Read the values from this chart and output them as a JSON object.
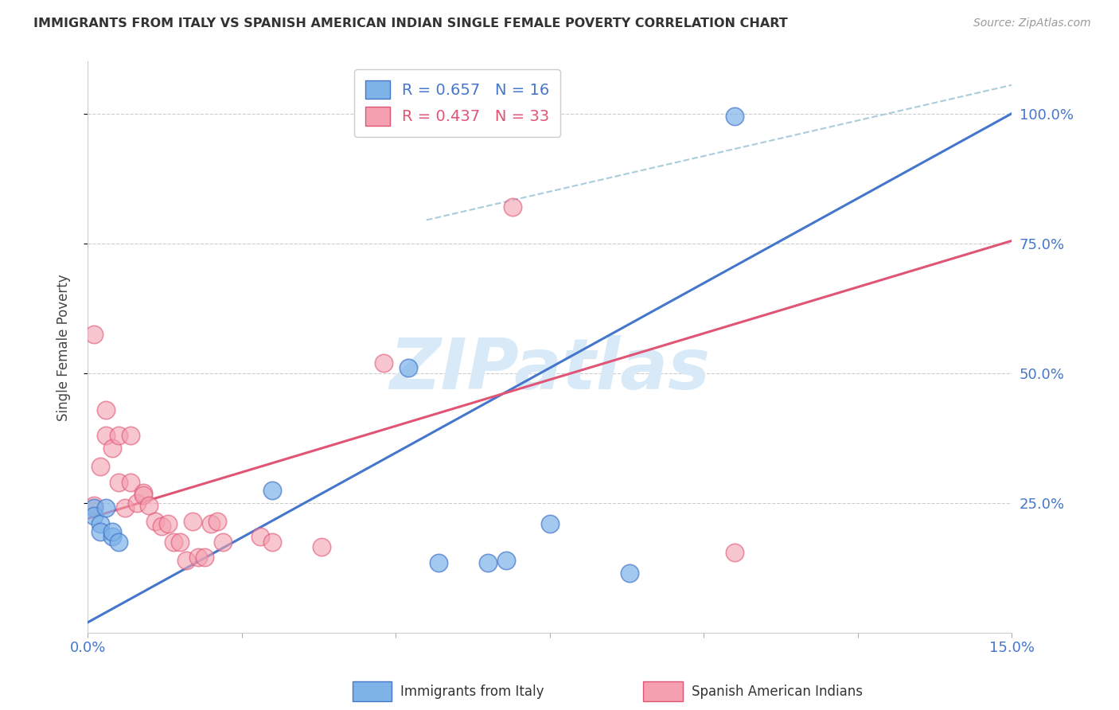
{
  "title": "IMMIGRANTS FROM ITALY VS SPANISH AMERICAN INDIAN SINGLE FEMALE POVERTY CORRELATION CHART",
  "source": "Source: ZipAtlas.com",
  "ylabel": "Single Female Poverty",
  "ytick_labels": [
    "25.0%",
    "50.0%",
    "75.0%",
    "100.0%"
  ],
  "legend_blue_r": "R = 0.657",
  "legend_blue_n": "N = 16",
  "legend_pink_r": "R = 0.437",
  "legend_pink_n": "N = 33",
  "legend_blue_label": "Immigrants from Italy",
  "legend_pink_label": "Spanish American Indians",
  "blue_scatter_x": [
    0.001,
    0.001,
    0.002,
    0.002,
    0.003,
    0.004,
    0.004,
    0.005,
    0.03,
    0.052,
    0.057,
    0.065,
    0.068,
    0.075,
    0.088,
    0.105
  ],
  "blue_scatter_y": [
    0.24,
    0.225,
    0.21,
    0.195,
    0.24,
    0.185,
    0.195,
    0.175,
    0.275,
    0.51,
    0.135,
    0.135,
    0.14,
    0.21,
    0.115,
    0.995
  ],
  "pink_scatter_x": [
    0.001,
    0.001,
    0.002,
    0.003,
    0.003,
    0.004,
    0.005,
    0.005,
    0.006,
    0.007,
    0.007,
    0.008,
    0.009,
    0.009,
    0.01,
    0.011,
    0.012,
    0.013,
    0.014,
    0.015,
    0.016,
    0.017,
    0.018,
    0.019,
    0.02,
    0.021,
    0.022,
    0.028,
    0.03,
    0.038,
    0.048,
    0.069,
    0.105
  ],
  "pink_scatter_y": [
    0.245,
    0.575,
    0.32,
    0.43,
    0.38,
    0.355,
    0.29,
    0.38,
    0.24,
    0.29,
    0.38,
    0.25,
    0.27,
    0.265,
    0.245,
    0.215,
    0.205,
    0.21,
    0.175,
    0.175,
    0.14,
    0.215,
    0.145,
    0.145,
    0.21,
    0.215,
    0.175,
    0.185,
    0.175,
    0.165,
    0.52,
    0.82,
    0.155
  ],
  "blue_line_x": [
    0.0,
    0.15
  ],
  "blue_line_y": [
    0.02,
    1.0
  ],
  "pink_line_x": [
    0.0,
    0.15
  ],
  "pink_line_y": [
    0.22,
    0.755
  ],
  "diagonal_line_x": [
    0.055,
    0.15
  ],
  "diagonal_line_y": [
    0.795,
    1.055
  ],
  "xmin": 0.0,
  "xmax": 0.15,
  "ymin": 0.0,
  "ymax": 1.1,
  "yticks": [
    0.25,
    0.5,
    0.75,
    1.0
  ],
  "blue_scatter_color": "#7EB3E8",
  "pink_scatter_color": "#F4A0B0",
  "blue_line_color": "#4477CC",
  "pink_line_color": "#E05575",
  "diagonal_color": "#AACCDD",
  "background_color": "#FFFFFF",
  "watermark_text": "ZIPatlas",
  "watermark_color": "#D8EAF8",
  "grid_color": "#CCCCCC",
  "title_color": "#333333",
  "source_color": "#999999",
  "axis_label_color": "#4477CC"
}
